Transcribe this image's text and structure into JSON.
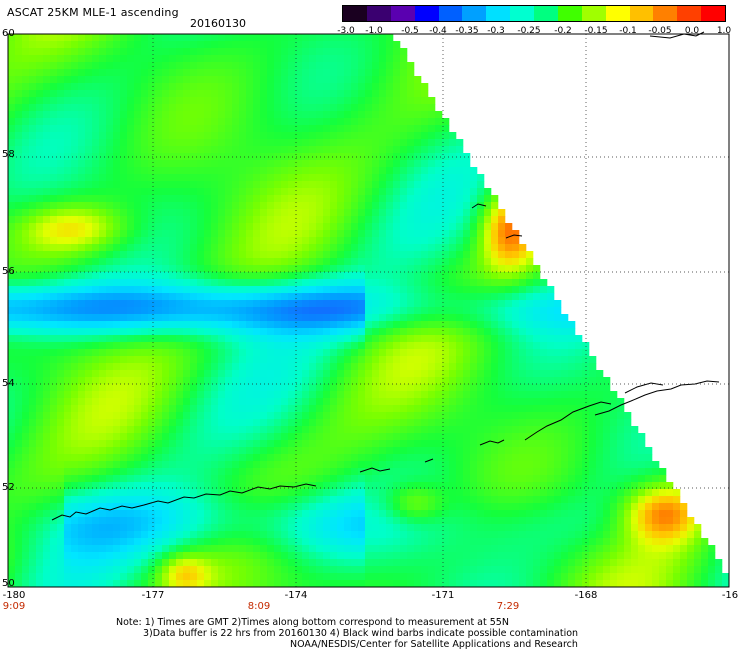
{
  "header": {
    "title": "ASCAT 25KM MLE-1 ascending",
    "date": "20160130"
  },
  "colorbar": {
    "colors": [
      "#1a0020",
      "#3a0070",
      "#5a00b0",
      "#0000ff",
      "#0060ff",
      "#00a0ff",
      "#00e0ff",
      "#00ffd0",
      "#00ff80",
      "#40ff00",
      "#a0ff00",
      "#ffff00",
      "#ffc000",
      "#ff8000",
      "#ff4000",
      "#ff0000"
    ],
    "ticks": [
      "-3.0",
      "-1.0",
      "-0.5",
      "-0.4",
      "-0.35",
      "-0.3",
      "-0.25",
      "-0.2",
      "-0.15",
      "-0.1",
      "-0.05",
      "0.0",
      "1.0"
    ]
  },
  "axes": {
    "lat_labels": [
      "60",
      "58",
      "56",
      "54",
      "52",
      "50"
    ],
    "lon_labels": [
      "-180",
      "-177",
      "-174",
      "-171",
      "-168",
      "-16"
    ],
    "time_labels": [
      "9:09",
      "8:09",
      "7:29"
    ]
  },
  "notes": {
    "line1": "Note: 1) Times are GMT 2)Times along bottom correspond to measurement at 55N",
    "line2": "3)Data buffer is 22 hrs from 20160130 4) Black wind barbs indicate possible contamination",
    "line3": "NOAA/NESDIS/Center for Satellite Applications and Research"
  }
}
